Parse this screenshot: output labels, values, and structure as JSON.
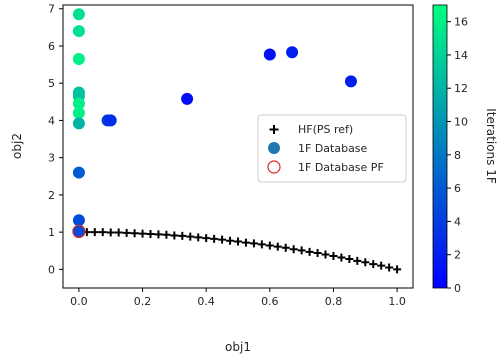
{
  "chart_data": {
    "type": "scatter",
    "xlabel": "obj1",
    "ylabel": "obj2",
    "xlim": [
      -0.05,
      1.05
    ],
    "ylim": [
      -0.5,
      7.1
    ],
    "x_ticks": [
      0.0,
      0.2,
      0.4,
      0.6,
      0.8,
      1.0
    ],
    "x_tick_labels": [
      "0.0",
      "0.2",
      "0.4",
      "0.6",
      "0.8",
      "1.0"
    ],
    "y_ticks": [
      0,
      1,
      2,
      3,
      4,
      5,
      6,
      7
    ],
    "y_tick_labels": [
      "0",
      "1",
      "2",
      "3",
      "4",
      "5",
      "6",
      "7"
    ],
    "grid": false,
    "legend_position": "center-right",
    "colorbar": {
      "label": "Iterations 1F",
      "range": [
        0,
        17
      ],
      "ticks": [
        0,
        2,
        4,
        6,
        8,
        10,
        12,
        14,
        16
      ],
      "tick_labels": [
        "0",
        "2",
        "4",
        "6",
        "8",
        "10",
        "12",
        "14",
        "16"
      ],
      "colormap": "winter",
      "color_low": "#0000ff",
      "color_high": "#00ff80"
    },
    "series": [
      {
        "name": "HF(PS ref)",
        "marker": "plus",
        "color": "#000000",
        "x": [
          0.0,
          0.025,
          0.05,
          0.075,
          0.1,
          0.125,
          0.15,
          0.175,
          0.2,
          0.225,
          0.25,
          0.275,
          0.3,
          0.325,
          0.35,
          0.375,
          0.4,
          0.425,
          0.45,
          0.475,
          0.5,
          0.525,
          0.55,
          0.575,
          0.6,
          0.625,
          0.65,
          0.675,
          0.7,
          0.725,
          0.75,
          0.775,
          0.8,
          0.825,
          0.85,
          0.875,
          0.9,
          0.925,
          0.95,
          0.975,
          1.0
        ],
        "y": [
          1.0,
          1.0,
          1.0,
          1.0,
          0.99,
          0.99,
          0.98,
          0.97,
          0.96,
          0.95,
          0.94,
          0.93,
          0.91,
          0.9,
          0.88,
          0.86,
          0.84,
          0.82,
          0.8,
          0.77,
          0.75,
          0.72,
          0.7,
          0.67,
          0.64,
          0.61,
          0.58,
          0.54,
          0.51,
          0.47,
          0.44,
          0.4,
          0.36,
          0.32,
          0.28,
          0.23,
          0.19,
          0.14,
          0.1,
          0.05,
          0.0
        ]
      },
      {
        "name": "1F Database",
        "marker": "circle",
        "color": "#1f77b4",
        "points": [
          {
            "x": 0.0,
            "y": 6.85,
            "iter": 15
          },
          {
            "x": 0.0,
            "y": 6.4,
            "iter": 15
          },
          {
            "x": 0.0,
            "y": 5.65,
            "iter": 16
          },
          {
            "x": 0.0,
            "y": 4.75,
            "iter": 13
          },
          {
            "x": 0.0,
            "y": 4.65,
            "iter": 13
          },
          {
            "x": 0.0,
            "y": 4.45,
            "iter": 16
          },
          {
            "x": 0.0,
            "y": 4.2,
            "iter": 16
          },
          {
            "x": 0.0,
            "y": 3.92,
            "iter": 12
          },
          {
            "x": 0.0,
            "y": 2.6,
            "iter": 6
          },
          {
            "x": 0.0,
            "y": 1.32,
            "iter": 5
          },
          {
            "x": 0.0,
            "y": 1.02,
            "iter": 5
          },
          {
            "x": 0.09,
            "y": 4.0,
            "iter": 4
          },
          {
            "x": 0.1,
            "y": 4.0,
            "iter": 3
          },
          {
            "x": 0.34,
            "y": 4.58,
            "iter": 1
          },
          {
            "x": 0.6,
            "y": 5.77,
            "iter": 1
          },
          {
            "x": 0.67,
            "y": 5.83,
            "iter": 2
          },
          {
            "x": 0.855,
            "y": 5.05,
            "iter": 2
          }
        ]
      },
      {
        "name": "1F Database PF",
        "marker": "open-circle",
        "color": "#d62728",
        "x": [
          0.0
        ],
        "y": [
          1.02
        ]
      }
    ]
  }
}
